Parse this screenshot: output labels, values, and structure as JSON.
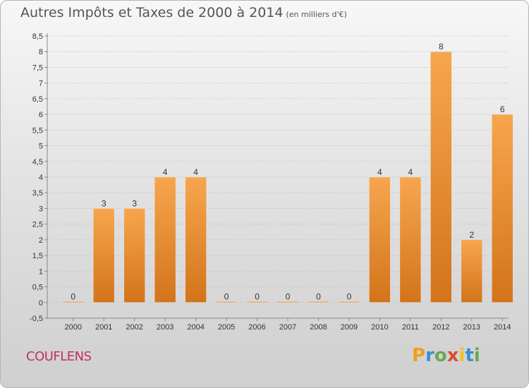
{
  "header": {
    "title": "Autres Impôts et Taxes de 2000 à 2014",
    "unit": "(en milliers d'€)"
  },
  "footer": {
    "commune": "COUFLENS"
  },
  "brand": {
    "name": "Proxiti",
    "letters": [
      {
        "ch": "P",
        "color": "#f39c1f"
      },
      {
        "ch": "r",
        "color": "#3a8fd4"
      },
      {
        "ch": "o",
        "color": "#6aa84f"
      },
      {
        "ch": "x",
        "color": "#e24a2e"
      },
      {
        "ch": "i",
        "color": "#f2c318"
      },
      {
        "ch": "t",
        "color": "#3a8fd4"
      },
      {
        "ch": "i",
        "color": "#6aa84f"
      }
    ]
  },
  "chart_data": {
    "type": "bar",
    "title": "Autres Impôts et Taxes de 2000 à 2014",
    "subtitle": "(en milliers d'€)",
    "categories": [
      "2000",
      "2001",
      "2002",
      "2003",
      "2004",
      "2005",
      "2006",
      "2007",
      "2008",
      "2009",
      "2010",
      "2011",
      "2012",
      "2013",
      "2014"
    ],
    "values": [
      0,
      3,
      3,
      4,
      4,
      0,
      0,
      0,
      0,
      0,
      4,
      4,
      8,
      2,
      6
    ],
    "data_labels": [
      "0",
      "3",
      "3",
      "4",
      "4",
      "0",
      "0",
      "0",
      "0",
      "0",
      "4",
      "4",
      "8",
      "2",
      "6"
    ],
    "ylim": [
      -0.5,
      8.5
    ],
    "yticks": [
      "-0,5",
      "0",
      "0,5",
      "1",
      "1,5",
      "2",
      "2,5",
      "3",
      "3,5",
      "4",
      "4,5",
      "5",
      "5,5",
      "6",
      "6,5",
      "7",
      "7,5",
      "8",
      "8,5"
    ],
    "ytick_values": [
      -0.5,
      0,
      0.5,
      1,
      1.5,
      2,
      2.5,
      3,
      3.5,
      4,
      4.5,
      5,
      5.5,
      6,
      6.5,
      7,
      7.5,
      8,
      8.5
    ],
    "grid": true,
    "colors": {
      "bar_top": "#f7a64e",
      "bar_bottom": "#d2741a",
      "grid": "#bdbdbd",
      "axis": "#888888",
      "text": "#333333"
    }
  }
}
